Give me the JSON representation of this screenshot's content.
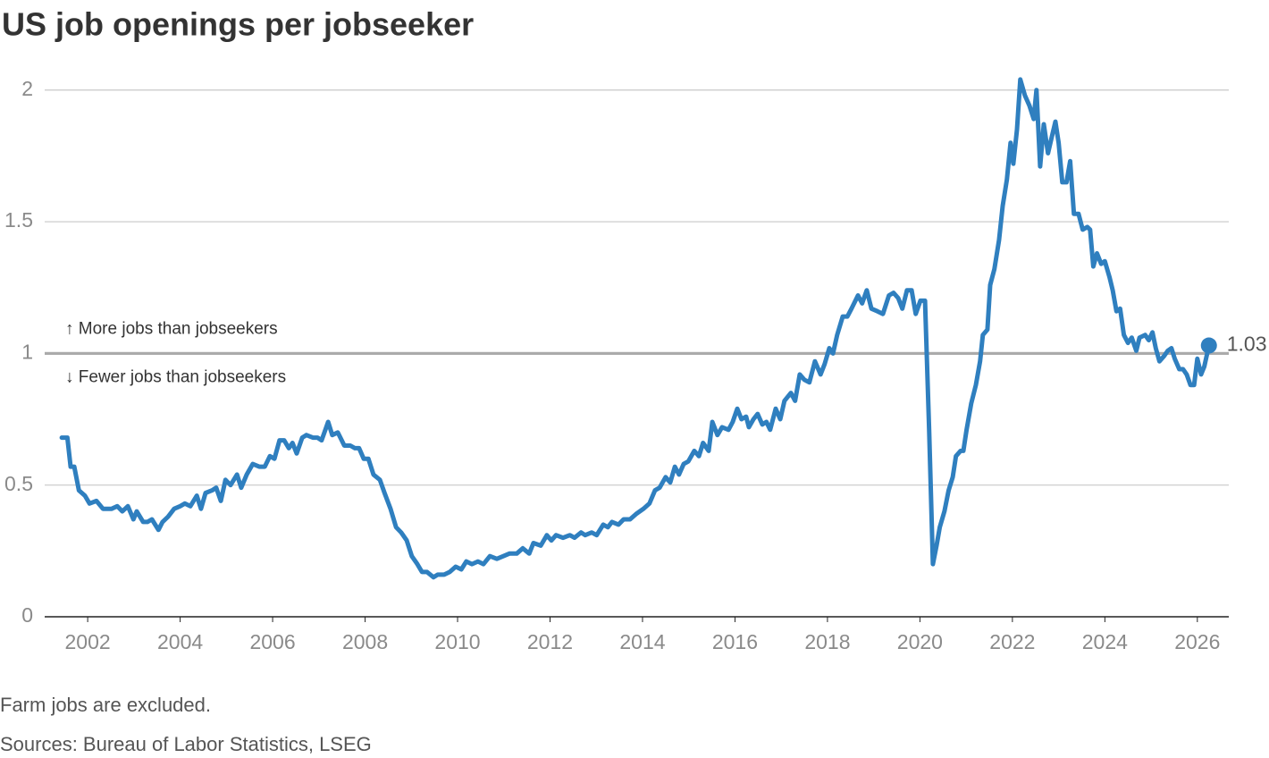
{
  "chart_data": {
    "type": "line",
    "title": "US job openings per jobseeker",
    "annotations": [
      "↑ More jobs than jobseekers",
      "↓ Fewer jobs than jobseekers"
    ],
    "note": "Farm jobs are excluded.",
    "source": "Sources: Bureau of Labor Statistics, LSEG",
    "color": "#2f7fbf",
    "grid": true,
    "reference_line": 1,
    "xlim": [
      2001.07,
      2026.68
    ],
    "xticks": [
      2002,
      2004,
      2006,
      2008,
      2010,
      2012,
      2014,
      2016,
      2018,
      2020,
      2022,
      2024,
      2026
    ],
    "ylim": [
      0,
      2.05
    ],
    "yticks": [
      0,
      0.5,
      1,
      1.5,
      2
    ],
    "x": [
      2001.44,
      2001.56,
      2001.63,
      2001.71,
      2001.81,
      2001.94,
      2002.04,
      2002.19,
      2002.33,
      2002.52,
      2002.64,
      2002.75,
      2002.87,
      2002.99,
      2003.06,
      2003.2,
      2003.29,
      2003.39,
      2003.53,
      2003.62,
      2003.74,
      2003.87,
      2004.0,
      2004.1,
      2004.22,
      2004.36,
      2004.45,
      2004.55,
      2004.69,
      2004.78,
      2004.88,
      2004.98,
      2005.09,
      2005.23,
      2005.32,
      2005.44,
      2005.57,
      2005.71,
      2005.83,
      2005.94,
      2006.04,
      2006.15,
      2006.25,
      2006.35,
      2006.43,
      2006.52,
      2006.64,
      2006.73,
      2006.87,
      2006.97,
      2007.06,
      2007.2,
      2007.29,
      2007.41,
      2007.55,
      2007.68,
      2007.78,
      2007.87,
      2007.97,
      2008.07,
      2008.18,
      2008.32,
      2008.42,
      2008.55,
      2008.67,
      2008.78,
      2008.9,
      2009.01,
      2009.13,
      2009.23,
      2009.34,
      2009.48,
      2009.57,
      2009.71,
      2009.83,
      2009.96,
      2010.08,
      2010.19,
      2010.31,
      2010.44,
      2010.56,
      2010.7,
      2010.85,
      2010.99,
      2011.12,
      2011.28,
      2011.41,
      2011.55,
      2011.64,
      2011.8,
      2011.93,
      2012.03,
      2012.13,
      2012.28,
      2012.43,
      2012.53,
      2012.67,
      2012.76,
      2012.9,
      2013.01,
      2013.15,
      2013.25,
      2013.34,
      2013.48,
      2013.59,
      2013.73,
      2013.86,
      2014.02,
      2014.15,
      2014.27,
      2014.37,
      2014.5,
      2014.6,
      2014.7,
      2014.79,
      2014.89,
      2014.99,
      2015.12,
      2015.22,
      2015.31,
      2015.43,
      2015.51,
      2015.62,
      2015.72,
      2015.86,
      2015.95,
      2016.05,
      2016.14,
      2016.24,
      2016.3,
      2016.4,
      2016.49,
      2016.59,
      2016.68,
      2016.76,
      2016.88,
      2016.98,
      2017.07,
      2017.21,
      2017.3,
      2017.4,
      2017.5,
      2017.61,
      2017.73,
      2017.85,
      2017.94,
      2018.04,
      2018.12,
      2018.21,
      2018.33,
      2018.43,
      2018.52,
      2018.66,
      2018.75,
      2018.85,
      2018.95,
      2019.08,
      2019.2,
      2019.33,
      2019.43,
      2019.53,
      2019.62,
      2019.72,
      2019.82,
      2019.91,
      2020.01,
      2020.11,
      2020.2,
      2020.28,
      2020.36,
      2020.43,
      2020.53,
      2020.62,
      2020.71,
      2020.78,
      2020.88,
      2020.94,
      2021.01,
      2021.11,
      2021.21,
      2021.3,
      2021.36,
      2021.46,
      2021.52,
      2021.61,
      2021.71,
      2021.79,
      2021.88,
      2021.96,
      2022.02,
      2022.1,
      2022.17,
      2022.27,
      2022.37,
      2022.46,
      2022.52,
      2022.6,
      2022.68,
      2022.77,
      2022.85,
      2022.93,
      2023.0,
      2023.08,
      2023.17,
      2023.25,
      2023.33,
      2023.43,
      2023.52,
      2023.62,
      2023.68,
      2023.75,
      2023.83,
      2023.92,
      2024.0,
      2024.1,
      2024.17,
      2024.25,
      2024.33,
      2024.41,
      2024.5,
      2024.58,
      2024.68,
      2024.75,
      2024.87,
      2024.95,
      2025.03,
      2025.1,
      2025.18,
      2025.28,
      2025.36,
      2025.44,
      2025.51,
      2025.61,
      2025.69,
      2025.77,
      2025.85,
      2025.93,
      2026.0,
      2026.08,
      2026.15,
      2026.25
    ],
    "values": [
      0.68,
      0.68,
      0.57,
      0.57,
      0.48,
      0.46,
      0.43,
      0.44,
      0.41,
      0.41,
      0.42,
      0.4,
      0.42,
      0.37,
      0.4,
      0.36,
      0.36,
      0.37,
      0.33,
      0.36,
      0.38,
      0.41,
      0.42,
      0.43,
      0.42,
      0.46,
      0.41,
      0.47,
      0.48,
      0.49,
      0.44,
      0.52,
      0.5,
      0.54,
      0.49,
      0.54,
      0.58,
      0.57,
      0.57,
      0.61,
      0.6,
      0.67,
      0.67,
      0.64,
      0.66,
      0.62,
      0.68,
      0.69,
      0.68,
      0.68,
      0.67,
      0.74,
      0.69,
      0.7,
      0.65,
      0.65,
      0.64,
      0.64,
      0.6,
      0.6,
      0.54,
      0.52,
      0.47,
      0.41,
      0.34,
      0.32,
      0.29,
      0.23,
      0.2,
      0.17,
      0.17,
      0.15,
      0.16,
      0.16,
      0.17,
      0.19,
      0.18,
      0.21,
      0.2,
      0.21,
      0.2,
      0.23,
      0.22,
      0.23,
      0.24,
      0.24,
      0.26,
      0.24,
      0.28,
      0.27,
      0.31,
      0.29,
      0.31,
      0.3,
      0.31,
      0.3,
      0.32,
      0.31,
      0.32,
      0.31,
      0.35,
      0.34,
      0.36,
      0.35,
      0.37,
      0.37,
      0.39,
      0.41,
      0.43,
      0.48,
      0.49,
      0.53,
      0.51,
      0.57,
      0.54,
      0.58,
      0.59,
      0.63,
      0.61,
      0.66,
      0.63,
      0.74,
      0.69,
      0.72,
      0.71,
      0.74,
      0.79,
      0.75,
      0.76,
      0.72,
      0.75,
      0.77,
      0.73,
      0.74,
      0.71,
      0.79,
      0.75,
      0.82,
      0.85,
      0.82,
      0.92,
      0.9,
      0.89,
      0.97,
      0.92,
      0.96,
      1.02,
      1.0,
      1.07,
      1.14,
      1.14,
      1.17,
      1.22,
      1.19,
      1.24,
      1.17,
      1.16,
      1.15,
      1.22,
      1.23,
      1.21,
      1.17,
      1.24,
      1.24,
      1.15,
      1.2,
      1.2,
      0.71,
      0.2,
      0.27,
      0.34,
      0.4,
      0.48,
      0.53,
      0.61,
      0.63,
      0.63,
      0.71,
      0.81,
      0.88,
      0.97,
      1.07,
      1.09,
      1.26,
      1.32,
      1.43,
      1.56,
      1.66,
      1.8,
      1.72,
      1.85,
      2.04,
      1.98,
      1.94,
      1.89,
      2.0,
      1.71,
      1.87,
      1.76,
      1.82,
      1.88,
      1.8,
      1.65,
      1.65,
      1.73,
      1.53,
      1.53,
      1.47,
      1.48,
      1.47,
      1.33,
      1.38,
      1.34,
      1.35,
      1.29,
      1.24,
      1.16,
      1.17,
      1.07,
      1.04,
      1.06,
      1.01,
      1.06,
      1.07,
      1.05,
      1.08,
      1.02,
      0.97,
      0.99,
      1.01,
      1.02,
      0.98,
      0.94,
      0.94,
      0.92,
      0.88,
      0.88,
      0.98,
      0.92,
      0.95,
      1.03
    ]
  }
}
